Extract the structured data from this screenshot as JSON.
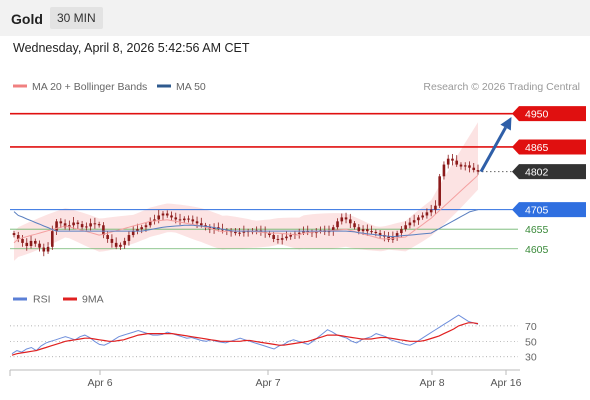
{
  "header": {
    "instrument": "Gold",
    "timeframe": "30 MIN"
  },
  "datetime": "Wednesday, April 8, 2026 5:42:56 AM CET",
  "legend": [
    {
      "name": "MA 20 + Bollinger Bands",
      "color": "#f08080"
    },
    {
      "name": "MA 50",
      "color": "#2e5a8e"
    }
  ],
  "credit": "Research © 2026 Trading Central",
  "rsi_legend": [
    {
      "name": "RSI",
      "color": "#5b7fd6"
    },
    {
      "name": "9MA",
      "color": "#e02020"
    }
  ],
  "colors": {
    "resistance": "#e01010",
    "support": "#2f6fe0",
    "support_minor": "#6cb56c",
    "price": "#333333",
    "candle": "#8b1a1a"
  },
  "chart_data": [
    {
      "type": "line",
      "subtype": "candlestick",
      "ylim": [
        4515,
        4990
      ],
      "x_ticks": [
        "Apr 6",
        "Apr 7",
        "Apr 8",
        "Apr 16"
      ],
      "levels": [
        {
          "label": "4950",
          "value": 4950,
          "kind": "resistance"
        },
        {
          "label": "4865",
          "value": 4865,
          "kind": "resistance"
        },
        {
          "label": "4802",
          "value": 4802,
          "kind": "price"
        },
        {
          "label": "4705",
          "value": 4705,
          "kind": "support"
        },
        {
          "label": "4655",
          "value": 4655,
          "kind": "support_minor"
        },
        {
          "label": "4605",
          "value": 4605,
          "kind": "support_minor"
        }
      ],
      "close_series": [
        4640,
        4630,
        4620,
        4612,
        4625,
        4618,
        4608,
        4598,
        4610,
        4650,
        4675,
        4670,
        4660,
        4665,
        4672,
        4668,
        4660,
        4662,
        4670,
        4668,
        4665,
        4640,
        4630,
        4620,
        4610,
        4615,
        4625,
        4640,
        4650,
        4655,
        4660,
        4665,
        4675,
        4680,
        4690,
        4695,
        4690,
        4685,
        4680,
        4678,
        4682,
        4680,
        4675,
        4670,
        4665,
        4660,
        4655,
        4660,
        4655,
        4652,
        4650,
        4648,
        4645,
        4646,
        4650,
        4648,
        4650,
        4652,
        4648,
        4645,
        4640,
        4630,
        4628,
        4632,
        4636,
        4640,
        4643,
        4646,
        4650,
        4648,
        4645,
        4650,
        4652,
        4648,
        4650,
        4660,
        4675,
        4685,
        4680,
        4670,
        4660,
        4650,
        4655,
        4650,
        4648,
        4645,
        4640,
        4636,
        4628,
        4635,
        4645,
        4655,
        4665,
        4672,
        4678,
        4685,
        4690,
        4698,
        4705,
        4715,
        4790,
        4820,
        4835,
        4830,
        4820,
        4815,
        4818,
        4812,
        4806,
        4802
      ],
      "ma20_series": [
        4620,
        4630,
        4633,
        4636,
        4639,
        4642,
        4645,
        4648,
        4651,
        4654,
        4657,
        4660,
        4663,
        4661,
        4658,
        4655,
        4652,
        4649,
        4646,
        4643,
        4640,
        4642,
        4645,
        4648,
        4651,
        4654,
        4657,
        4660,
        4663,
        4666,
        4669,
        4672,
        4675,
        4676,
        4677,
        4678,
        4679,
        4677,
        4675,
        4673,
        4671,
        4669,
        4667,
        4665,
        4663,
        4660,
        4657,
        4654,
        4651,
        4648,
        4650,
        4650,
        4650,
        4650,
        4650,
        4650,
        4649,
        4648,
        4647,
        4646,
        4645,
        4645,
        4645,
        4644,
        4643,
        4642,
        4641,
        4640,
        4645,
        4646,
        4647,
        4648,
        4649,
        4650,
        4651,
        4652,
        4653,
        4654,
        4655,
        4652,
        4649,
        4646,
        4643,
        4640,
        4637,
        4634,
        4631,
        4630,
        4631,
        4632,
        4633,
        4634,
        4635,
        4643,
        4651,
        4659,
        4667,
        4675,
        4683,
        4693,
        4703,
        4713,
        4723,
        4733,
        4743,
        4753,
        4763,
        4773,
        4783,
        4793
      ],
      "ma50_series": [
        4700,
        4690,
        4686,
        4681,
        4677,
        4672,
        4668,
        4663,
        4659,
        4654,
        4650,
        4650,
        4650,
        4650,
        4650,
        4650,
        4650,
        4650,
        4650,
        4650,
        4650,
        4650,
        4650,
        4650,
        4650,
        4650,
        4650,
        4650,
        4650,
        4650,
        4650,
        4652,
        4654,
        4656,
        4658,
        4660,
        4661,
        4662,
        4663,
        4664,
        4665,
        4665,
        4665,
        4664,
        4663,
        4662,
        4661,
        4659,
        4657,
        4655,
        4653,
        4651,
        4650,
        4650,
        4650,
        4650,
        4650,
        4650,
        4650,
        4650,
        4650,
        4650,
        4650,
        4650,
        4650,
        4650,
        4650,
        4650,
        4650,
        4650,
        4650,
        4650,
        4650,
        4650,
        4650,
        4650,
        4650,
        4650,
        4650,
        4649,
        4648,
        4646,
        4645,
        4643,
        4642,
        4641,
        4639,
        4638,
        4637,
        4636,
        4637,
        4638,
        4639,
        4640,
        4641,
        4642,
        4643,
        4644,
        4645,
        4651,
        4657,
        4663,
        4669,
        4675,
        4681,
        4687,
        4693,
        4699,
        4702,
        4705
      ],
      "projection": {
        "from": 4802,
        "to": 4950
      }
    },
    {
      "type": "line",
      "title": "RSI",
      "ylim": [
        18,
        88
      ],
      "y_ticks": [
        30,
        50,
        70
      ],
      "series": [
        {
          "name": "RSI",
          "values": [
            34,
            38,
            36,
            40,
            42,
            38,
            44,
            48,
            50,
            52,
            54,
            56,
            54,
            52,
            56,
            58,
            55,
            50,
            46,
            45,
            48,
            52,
            56,
            58,
            60,
            62,
            64,
            62,
            60,
            58,
            58,
            59,
            62,
            60,
            58,
            56,
            54,
            55,
            53,
            51,
            50,
            52,
            50,
            49,
            48,
            50,
            52,
            54,
            52,
            50,
            48,
            46,
            44,
            42,
            40,
            44,
            46,
            50,
            52,
            50,
            48,
            46,
            50,
            55,
            60,
            65,
            62,
            58,
            56,
            54,
            50,
            48,
            52,
            54,
            56,
            60,
            58,
            56,
            52,
            50,
            48,
            46,
            45,
            48,
            52,
            56,
            60,
            64,
            68,
            72,
            76,
            80,
            84,
            80,
            76,
            74,
            72
          ]
        },
        {
          "name": "9MA",
          "values": [
            32,
            34,
            35,
            36,
            37,
            38,
            40,
            42,
            44,
            46,
            48,
            50,
            51,
            52,
            53,
            54,
            54,
            53,
            52,
            51,
            50,
            50,
            51,
            52,
            54,
            56,
            58,
            59,
            60,
            60,
            60,
            60,
            60,
            60,
            59,
            58,
            57,
            56,
            55,
            54,
            53,
            52,
            51,
            50,
            50,
            50,
            50,
            50,
            51,
            51,
            50,
            49,
            48,
            47,
            46,
            45,
            45,
            46,
            47,
            48,
            49,
            50,
            52,
            54,
            56,
            58,
            58,
            58,
            57,
            56,
            55,
            54,
            53,
            53,
            53,
            54,
            55,
            55,
            54,
            53,
            52,
            51,
            50,
            50,
            50,
            51,
            53,
            55,
            57,
            60,
            63,
            66,
            70,
            72,
            74,
            74,
            73
          ]
        }
      ]
    }
  ]
}
